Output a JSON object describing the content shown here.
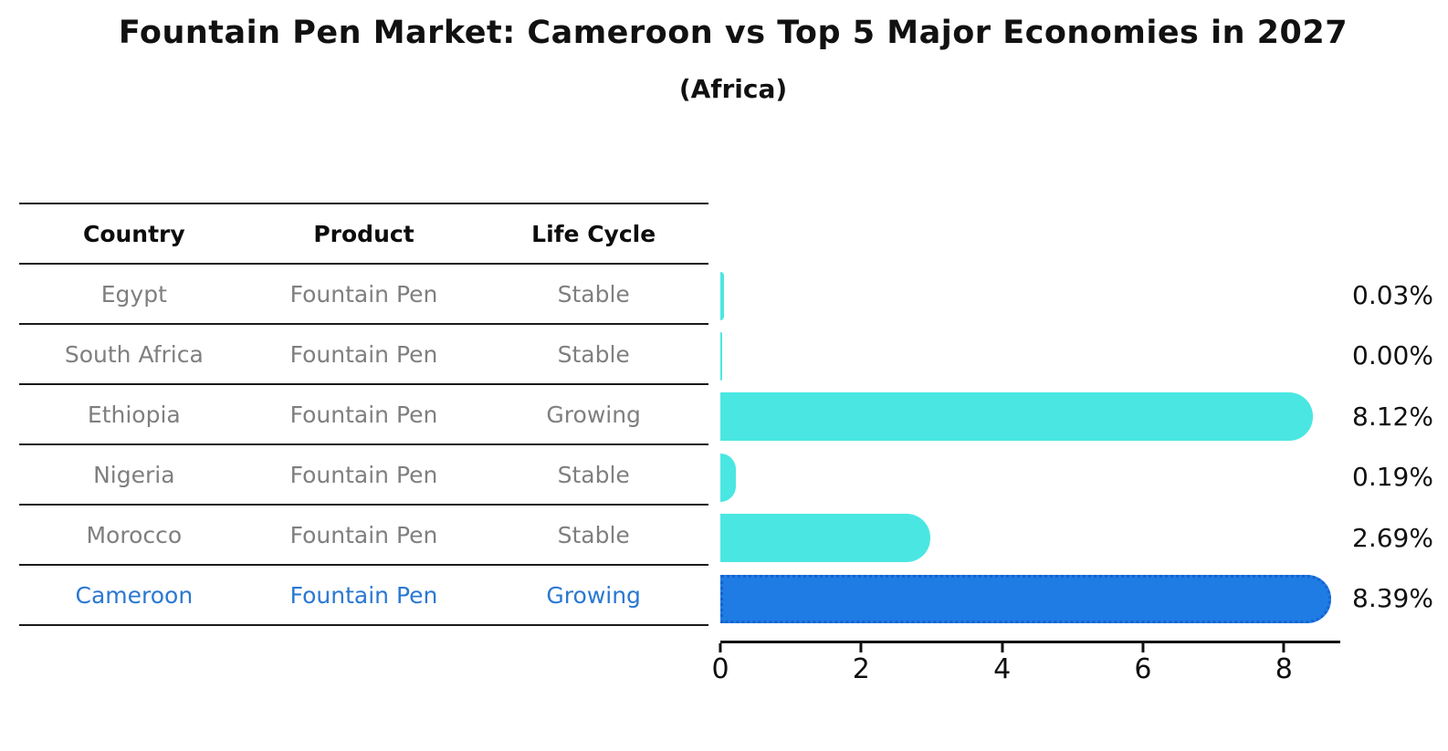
{
  "title": "Fountain Pen Market: Cameroon vs Top 5 Major Economies in 2027",
  "subtitle": "(Africa)",
  "table": {
    "headers": [
      "Country",
      "Product",
      "Life Cycle"
    ]
  },
  "chart_data": {
    "type": "bar",
    "orientation": "horizontal",
    "title": "Fountain Pen Market: Cameroon vs Top 5 Major Economies in 2027",
    "subtitle": "(Africa)",
    "categories": [
      "Egypt",
      "South Africa",
      "Ethiopia",
      "Nigeria",
      "Morocco",
      "Cameroon"
    ],
    "rows": [
      {
        "country": "Egypt",
        "product": "Fountain Pen",
        "life_cycle": "Stable",
        "value": 0.03,
        "label": "0.03%",
        "highlight": false
      },
      {
        "country": "South Africa",
        "product": "Fountain Pen",
        "life_cycle": "Stable",
        "value": 0.0,
        "label": "0.00%",
        "highlight": false
      },
      {
        "country": "Ethiopia",
        "product": "Fountain Pen",
        "life_cycle": "Growing",
        "value": 8.12,
        "label": "8.12%",
        "highlight": false
      },
      {
        "country": "Nigeria",
        "product": "Fountain Pen",
        "life_cycle": "Stable",
        "value": 0.19,
        "label": "0.19%",
        "highlight": false
      },
      {
        "country": "Morocco",
        "product": "Fountain Pen",
        "life_cycle": "Stable",
        "value": 2.69,
        "label": "2.69%",
        "highlight": false
      },
      {
        "country": "Cameroon",
        "product": "Fountain Pen",
        "life_cycle": "Growing",
        "value": 8.39,
        "label": "8.39%",
        "highlight": true
      }
    ],
    "xlabel": "",
    "ylabel": "",
    "xticks": [
      0,
      2,
      4,
      6,
      8
    ],
    "xlim": [
      0,
      8.8
    ],
    "grid": false,
    "legend": false
  },
  "colors": {
    "bar": "#4ae7e2",
    "highlight_bar": "#1e7ce4",
    "highlight_border": "#1563cf",
    "highlight_text": "#2a78d2",
    "table_text": "#7f7f7f",
    "header_text": "#0d0d0d",
    "line": "#1a1a1a",
    "label_text": "#111111",
    "axis": "#0f0f0f"
  }
}
